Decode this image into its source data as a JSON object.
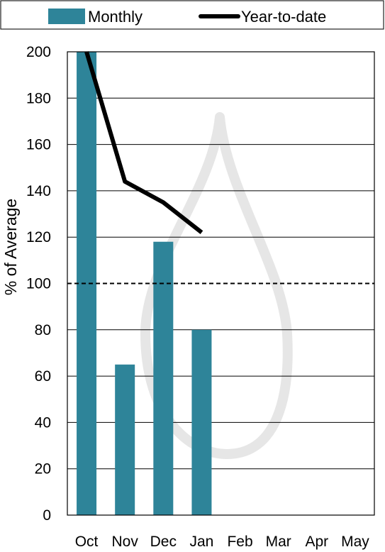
{
  "chart_data": {
    "type": "bar",
    "categories": [
      "Oct",
      "Nov",
      "Dec",
      "Jan",
      "Feb",
      "Mar",
      "Apr",
      "May"
    ],
    "series": [
      {
        "name": "Monthly",
        "type": "bar",
        "color": "#2E8499",
        "values": [
          200,
          65,
          118,
          80,
          null,
          null,
          null,
          null
        ]
      },
      {
        "name": "Year-to-date",
        "type": "line",
        "color": "#000000",
        "values": [
          200,
          144,
          135,
          122,
          null,
          null,
          null,
          null
        ]
      }
    ],
    "reference_line": {
      "y": 100,
      "style": "dashed"
    },
    "ylabel": "% of Average",
    "ylim": [
      0,
      200
    ],
    "yticks": [
      0,
      20,
      40,
      60,
      80,
      100,
      120,
      140,
      160,
      180,
      200
    ],
    "grid": true,
    "legend": "top",
    "watermark": "water-drop-icon"
  }
}
